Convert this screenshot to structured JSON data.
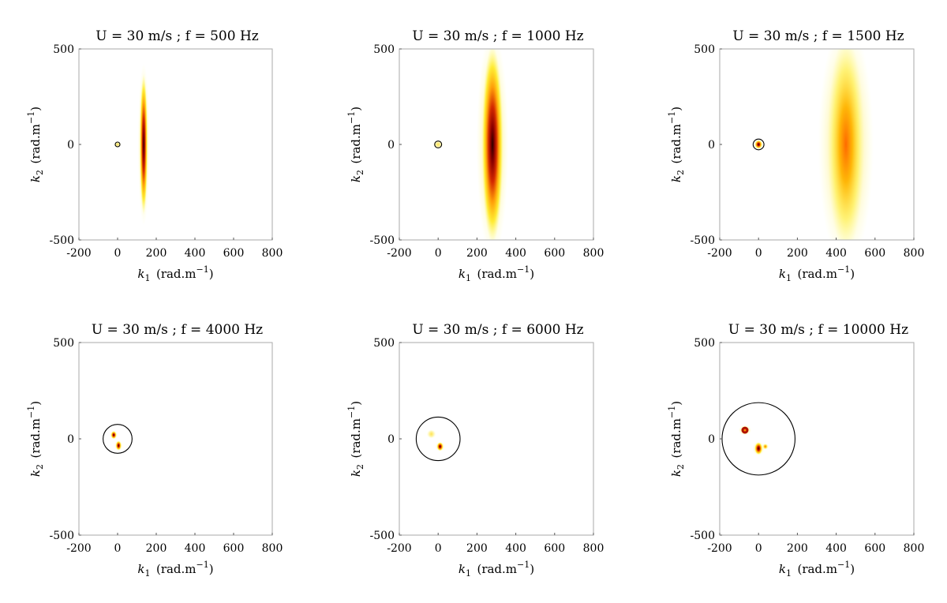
{
  "figure": {
    "panel_titles": [
      "U = 30 m/s ; f = 500 Hz",
      "U = 30 m/s ; f = 1000 Hz",
      "U = 30 m/s ; f = 1500 Hz",
      "U = 30 m/s ; f = 4000 Hz",
      "U = 30 m/s ; f = 6000 Hz",
      "U = 30 m/s ; f = 10000 Hz"
    ],
    "xlabel": "k1 (rad.m−1)",
    "ylabel": "k2 (rad.m−1)"
  },
  "chart_data": [
    {
      "type": "heatmap",
      "title": "U = 30 m/s ; f = 500 Hz",
      "xlabel": "k1 (rad.m−1)",
      "ylabel": "k2 (rad.m−1)",
      "xlim": [
        -200,
        800
      ],
      "ylim": [
        -500,
        500
      ],
      "xticks": [
        -200,
        0,
        200,
        400,
        600,
        800
      ],
      "yticks": [
        -500,
        0,
        500
      ],
      "acoustic_circle_radius": 9,
      "blobs": [
        {
          "k1": 135,
          "k2": 0,
          "width": 20,
          "height": 370,
          "peak": 1.0
        },
        {
          "k1": 0,
          "k2": 0,
          "width": 9,
          "height": 9,
          "peak": 0.35
        }
      ]
    },
    {
      "type": "heatmap",
      "title": "U = 30 m/s ; f = 1000 Hz",
      "xlabel": "k1 (rad.m−1)",
      "ylabel": "k2 (rad.m−1)",
      "xlim": [
        -200,
        800
      ],
      "ylim": [
        -500,
        500
      ],
      "xticks": [
        -200,
        0,
        200,
        400,
        600,
        800
      ],
      "yticks": [
        -500,
        0,
        500
      ],
      "acoustic_circle_radius": 18,
      "blobs": [
        {
          "k1": 280,
          "k2": 0,
          "width": 55,
          "height": 520,
          "peak": 1.0
        },
        {
          "k1": 0,
          "k2": 0,
          "width": 18,
          "height": 18,
          "peak": 0.35
        }
      ]
    },
    {
      "type": "heatmap",
      "title": "U = 30 m/s ; f = 1500 Hz",
      "xlabel": "k1 (rad.m−1)",
      "ylabel": "k2 (rad.m−1)",
      "xlim": [
        -200,
        800
      ],
      "ylim": [
        -500,
        500
      ],
      "xticks": [
        -200,
        0,
        200,
        400,
        600,
        800
      ],
      "yticks": [
        -500,
        0,
        500
      ],
      "acoustic_circle_radius": 28,
      "blobs": [
        {
          "k1": 450,
          "k2": 0,
          "width": 95,
          "height": 560,
          "peak": 0.75
        },
        {
          "k1": 0,
          "k2": 0,
          "width": 18,
          "height": 22,
          "peak": 1.0
        }
      ]
    },
    {
      "type": "heatmap",
      "title": "U = 30 m/s ; f = 4000 Hz",
      "xlabel": "k1 (rad.m−1)",
      "ylabel": "k2 (rad.m−1)",
      "xlim": [
        -200,
        800
      ],
      "ylim": [
        -500,
        500
      ],
      "xticks": [
        -200,
        0,
        200,
        400,
        600,
        800
      ],
      "yticks": [
        -500,
        0,
        500
      ],
      "acoustic_circle_radius": 75,
      "blobs": [
        {
          "k1": -20,
          "k2": 20,
          "width": 14,
          "height": 20,
          "peak": 1.0
        },
        {
          "k1": 5,
          "k2": -35,
          "width": 14,
          "height": 24,
          "peak": 0.95
        }
      ]
    },
    {
      "type": "heatmap",
      "title": "U = 30 m/s ; f = 6000 Hz",
      "xlabel": "k1 (rad.m−1)",
      "ylabel": "k2 (rad.m−1)",
      "xlim": [
        -200,
        800
      ],
      "ylim": [
        -500,
        500
      ],
      "xticks": [
        -200,
        0,
        200,
        400,
        600,
        800
      ],
      "yticks": [
        -500,
        0,
        500
      ],
      "acoustic_circle_radius": 113,
      "blobs": [
        {
          "k1": -35,
          "k2": 25,
          "width": 16,
          "height": 20,
          "peak": 0.45
        },
        {
          "k1": 10,
          "k2": -40,
          "width": 16,
          "height": 22,
          "peak": 1.0
        }
      ]
    },
    {
      "type": "heatmap",
      "title": "U = 30 m/s ; f = 10000 Hz",
      "xlabel": "k1 (rad.m−1)",
      "ylabel": "k2 (rad.m−1)",
      "xlim": [
        -200,
        800
      ],
      "ylim": [
        -500,
        500
      ],
      "xticks": [
        -200,
        0,
        200,
        400,
        600,
        800
      ],
      "yticks": [
        -500,
        0,
        500
      ],
      "acoustic_circle_radius": 188,
      "blobs": [
        {
          "k1": -70,
          "k2": 45,
          "width": 22,
          "height": 22,
          "peak": 0.85,
          "ring": true
        },
        {
          "k1": 0,
          "k2": -50,
          "width": 20,
          "height": 32,
          "peak": 1.0
        },
        {
          "k1": 35,
          "k2": -40,
          "width": 12,
          "height": 14,
          "peak": 0.7
        }
      ]
    }
  ]
}
